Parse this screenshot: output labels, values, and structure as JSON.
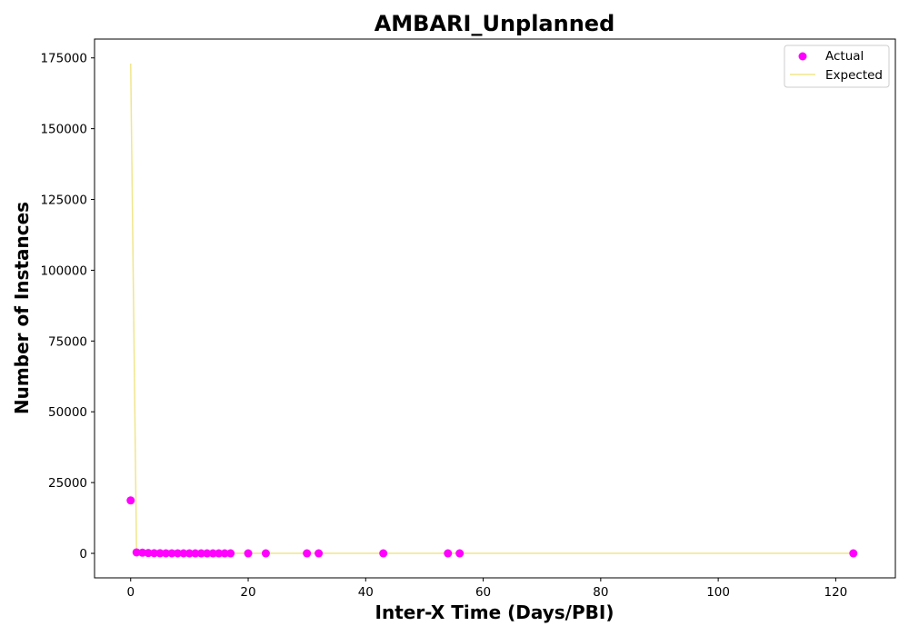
{
  "chart_data": {
    "type": "scatter",
    "title": "AMBARI_Unplanned",
    "xlabel": "Inter-X Time (Days/PBI)",
    "ylabel": "Number of Instances",
    "xlim": [
      -6.15,
      130.15
    ],
    "ylim": [
      -8650,
      181650
    ],
    "xticks": [
      0,
      20,
      40,
      60,
      80,
      100,
      120
    ],
    "xtick_labels": [
      "0",
      "20",
      "40",
      "60",
      "80",
      "100",
      "120"
    ],
    "yticks": [
      0,
      25000,
      50000,
      75000,
      100000,
      125000,
      150000,
      175000
    ],
    "ytick_labels": [
      "0",
      "25000",
      "50000",
      "75000",
      "100000",
      "125000",
      "150000",
      "175000"
    ],
    "grid": false,
    "legend_position": "top-right",
    "series": [
      {
        "name": "Actual",
        "kind": "scatter",
        "color": "#ff00ff",
        "points": [
          [
            0,
            18700
          ],
          [
            1,
            350
          ],
          [
            2,
            250
          ],
          [
            3,
            120
          ],
          [
            4,
            60
          ],
          [
            5,
            40
          ],
          [
            6,
            30
          ],
          [
            7,
            25
          ],
          [
            8,
            20
          ],
          [
            9,
            15
          ],
          [
            10,
            12
          ],
          [
            11,
            10
          ],
          [
            12,
            8
          ],
          [
            13,
            6
          ],
          [
            14,
            5
          ],
          [
            15,
            4
          ],
          [
            16,
            3
          ],
          [
            17,
            2
          ],
          [
            20,
            1
          ],
          [
            23,
            1
          ],
          [
            30,
            1
          ],
          [
            32,
            1
          ],
          [
            43,
            1
          ],
          [
            54,
            1
          ],
          [
            56,
            1
          ],
          [
            123,
            1
          ]
        ]
      },
      {
        "name": "Expected",
        "kind": "line",
        "color": "#f0e68c",
        "points": [
          [
            0,
            173000
          ],
          [
            1,
            0
          ],
          [
            2,
            0
          ],
          [
            5,
            0
          ],
          [
            10,
            0
          ],
          [
            17,
            0
          ],
          [
            30,
            0
          ],
          [
            60,
            0
          ],
          [
            90,
            0
          ],
          [
            123,
            0
          ]
        ]
      }
    ]
  }
}
